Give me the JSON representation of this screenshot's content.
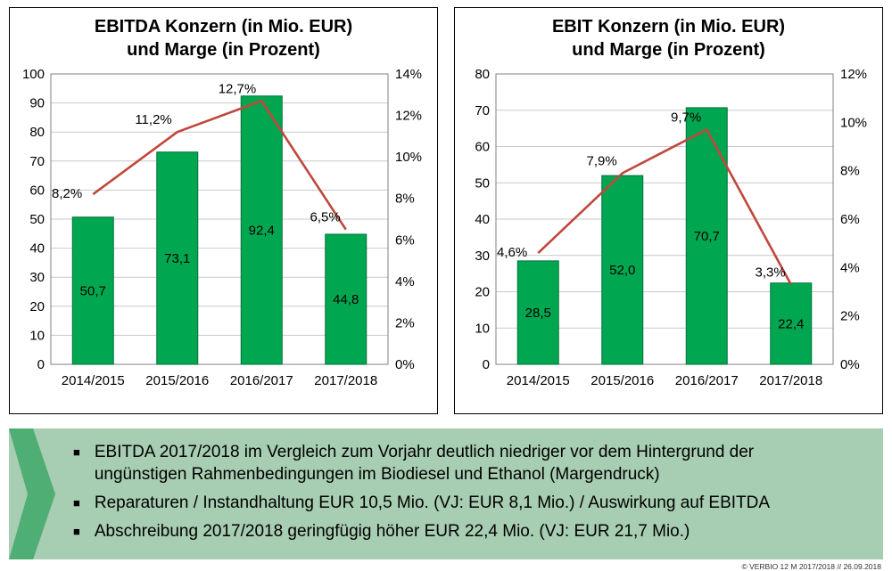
{
  "colors": {
    "bar": "#00A650",
    "bar_border": "#00733A",
    "line": "#C0473C",
    "grid": "#c9c9c9",
    "plot_border": "#808080",
    "axis_line": "#404040",
    "note_box_bg": "#A7CDB2",
    "chevron": "#4FAE74"
  },
  "chart_data": [
    {
      "type": "bar",
      "subtype": "combo-bar-line",
      "title_line1": "EBITDA Konzern (in Mio. EUR)",
      "title_line2": "und Marge (in Prozent)",
      "categories": [
        "2014/2015",
        "2015/2016",
        "2016/2017",
        "2017/2018"
      ],
      "series": [
        {
          "name": "EBITDA (Mio. EUR)",
          "type": "bar",
          "axis": "left",
          "values": [
            50.7,
            73.1,
            92.4,
            44.8
          ],
          "labels": [
            "50,7",
            "73,1",
            "92,4",
            "44,8"
          ]
        },
        {
          "name": "Marge (%)",
          "type": "line",
          "axis": "right",
          "values": [
            8.2,
            11.2,
            12.7,
            6.5
          ],
          "labels": [
            "8,2%",
            "11,2%",
            "12,7%",
            "6,5%"
          ]
        }
      ],
      "left_axis": {
        "min": 0,
        "max": 100,
        "step": 10,
        "ticks": [
          "0",
          "10",
          "20",
          "30",
          "40",
          "50",
          "60",
          "70",
          "80",
          "90",
          "100"
        ]
      },
      "right_axis": {
        "min": 0,
        "max": 14,
        "step": 2,
        "ticks": [
          "0%",
          "2%",
          "4%",
          "6%",
          "8%",
          "10%",
          "12%",
          "14%"
        ]
      },
      "grid": true,
      "legend": "none"
    },
    {
      "type": "bar",
      "subtype": "combo-bar-line",
      "title_line1": "EBIT Konzern (in Mio. EUR)",
      "title_line2": "und Marge (in Prozent)",
      "categories": [
        "2014/2015",
        "2015/2016",
        "2016/2017",
        "2017/2018"
      ],
      "series": [
        {
          "name": "EBIT (Mio. EUR)",
          "type": "bar",
          "axis": "left",
          "values": [
            28.5,
            52.0,
            70.7,
            22.4
          ],
          "labels": [
            "28,5",
            "52,0",
            "70,7",
            "22,4"
          ]
        },
        {
          "name": "Marge (%)",
          "type": "line",
          "axis": "right",
          "values": [
            4.6,
            7.9,
            9.7,
            3.3
          ],
          "labels": [
            "4,6%",
            "7,9%",
            "9,7%",
            "3,3%"
          ]
        }
      ],
      "left_axis": {
        "min": 0,
        "max": 80,
        "step": 10,
        "ticks": [
          "0",
          "10",
          "20",
          "30",
          "40",
          "50",
          "60",
          "70",
          "80"
        ]
      },
      "right_axis": {
        "min": 0,
        "max": 12,
        "step": 2,
        "ticks": [
          "0%",
          "2%",
          "4%",
          "6%",
          "8%",
          "10%",
          "12%"
        ]
      },
      "grid": true,
      "legend": "none"
    }
  ],
  "notes": {
    "bullets": [
      {
        "text": "EBITDA 2017/2018 im Vergleich zum Vorjahr deutlich niedriger vor dem Hintergrund der\nungünstigen Rahmenbedingungen im Biodiesel und Ethanol (Margendruck)"
      },
      {
        "text": "Reparaturen / Instandhaltung EUR 10,5 Mio. (VJ: EUR 8,1 Mio.) / Auswirkung auf EBITDA"
      },
      {
        "text": "Abschreibung 2017/2018 geringfügig höher EUR 22,4 Mio. (VJ: EUR 21,7 Mio.)"
      }
    ]
  },
  "footer": {
    "text": "© VERBIO 12 M 2017/2018 // 26.09.2018"
  }
}
